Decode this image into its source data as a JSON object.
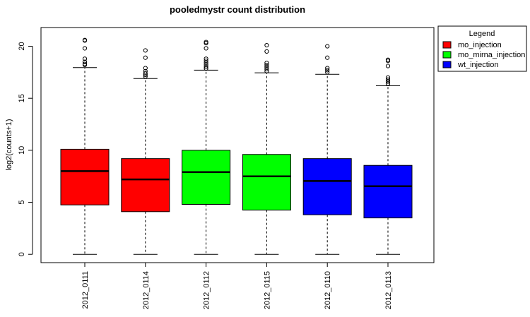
{
  "chart_data": {
    "type": "boxplot",
    "title": "pooledmystr count distribution",
    "xlabel": "",
    "ylabel": "log2(counts+1)",
    "ylim": [
      -0.8,
      21.8
    ],
    "yticks": [
      0,
      5,
      10,
      15,
      20
    ],
    "grid": false,
    "legend_position": "outside-top-right",
    "legend": {
      "title": "Legend",
      "entries": [
        {
          "label": "mo_injection",
          "color": "#ff0000"
        },
        {
          "label": "mo_mirna_injection",
          "color": "#00ff00"
        },
        {
          "label": "wt_injection",
          "color": "#0000ff"
        }
      ]
    },
    "boxes": [
      {
        "category": "2012_0111",
        "color": "#ff0000",
        "min": 0,
        "q1": 4.75,
        "median": 8.0,
        "q3": 10.1,
        "whisker_high": 17.95,
        "outliers": [
          18.2,
          18.3,
          18.5,
          18.8,
          19.8,
          20.55,
          20.6
        ]
      },
      {
        "category": "2012_0114",
        "color": "#ff0000",
        "min": 0,
        "q1": 4.1,
        "median": 7.2,
        "q3": 9.2,
        "whisker_high": 16.9,
        "outliers": [
          17.1,
          17.25,
          17.4,
          17.6,
          17.9,
          18.9,
          19.6
        ]
      },
      {
        "category": "2012_0112",
        "color": "#00ff00",
        "min": 0,
        "q1": 4.8,
        "median": 7.9,
        "q3": 10.0,
        "whisker_high": 17.7,
        "outliers": [
          17.85,
          18.0,
          18.2,
          18.4,
          18.6,
          18.8,
          19.8,
          20.3,
          20.4
        ]
      },
      {
        "category": "2012_0115",
        "color": "#00ff00",
        "min": 0,
        "q1": 4.25,
        "median": 7.5,
        "q3": 9.6,
        "whisker_high": 17.45,
        "outliers": [
          17.6,
          17.8,
          18.0,
          18.2,
          18.4,
          19.5,
          20.1
        ]
      },
      {
        "category": "2012_0110",
        "color": "#0000ff",
        "min": 0,
        "q1": 3.8,
        "median": 7.05,
        "q3": 9.2,
        "whisker_high": 17.3,
        "outliers": [
          17.5,
          17.7,
          17.9,
          18.9,
          20.0
        ]
      },
      {
        "category": "2012_0113",
        "color": "#0000ff",
        "min": 0,
        "q1": 3.5,
        "median": 6.55,
        "q3": 8.55,
        "whisker_high": 16.2,
        "outliers": [
          16.4,
          16.6,
          16.8,
          17.0,
          18.1,
          18.6,
          18.7
        ]
      }
    ]
  }
}
